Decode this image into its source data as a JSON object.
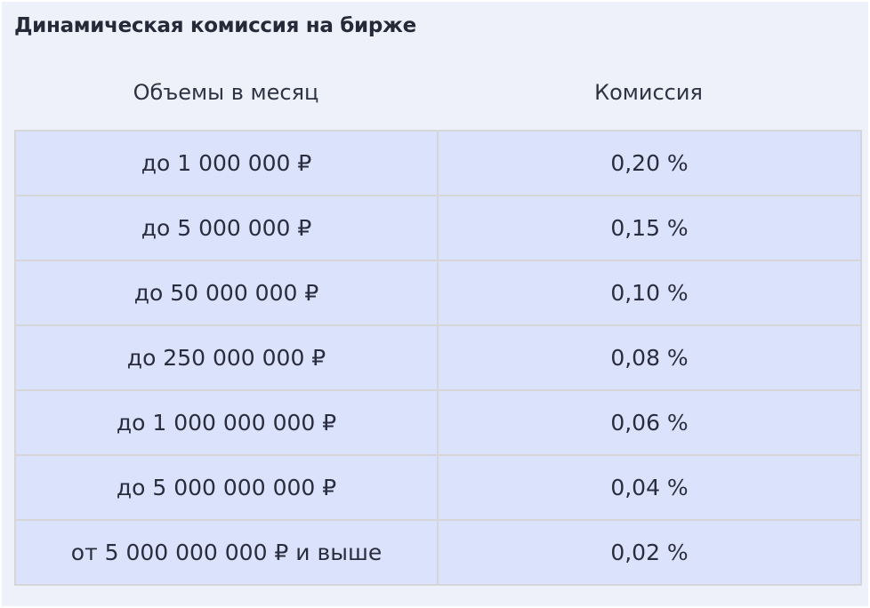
{
  "title": "Динамическая комиссия на бирже",
  "columns": {
    "volume": "Объемы в месяц",
    "commission": "Комиссия"
  },
  "rows": [
    {
      "volume": "до 1 000 000 ₽",
      "commission": "0,20 %"
    },
    {
      "volume": "до 5 000 000 ₽",
      "commission": "0,15 %"
    },
    {
      "volume": "до 50 000 000 ₽",
      "commission": "0,10 %"
    },
    {
      "volume": "до 250 000 000 ₽",
      "commission": "0,08 %"
    },
    {
      "volume": "до 1 000 000 000 ₽",
      "commission": "0,06 %"
    },
    {
      "volume": "до 5 000 000 000 ₽",
      "commission": "0,04 %"
    },
    {
      "volume": "от 5 000 000 000 ₽ и выше",
      "commission": "0,02 %"
    }
  ],
  "colors": {
    "panel_background": "#eff1fa",
    "row_background": "#dbe3fc",
    "grid_line": "#d6d6d8",
    "text": "#2a2d3e"
  }
}
